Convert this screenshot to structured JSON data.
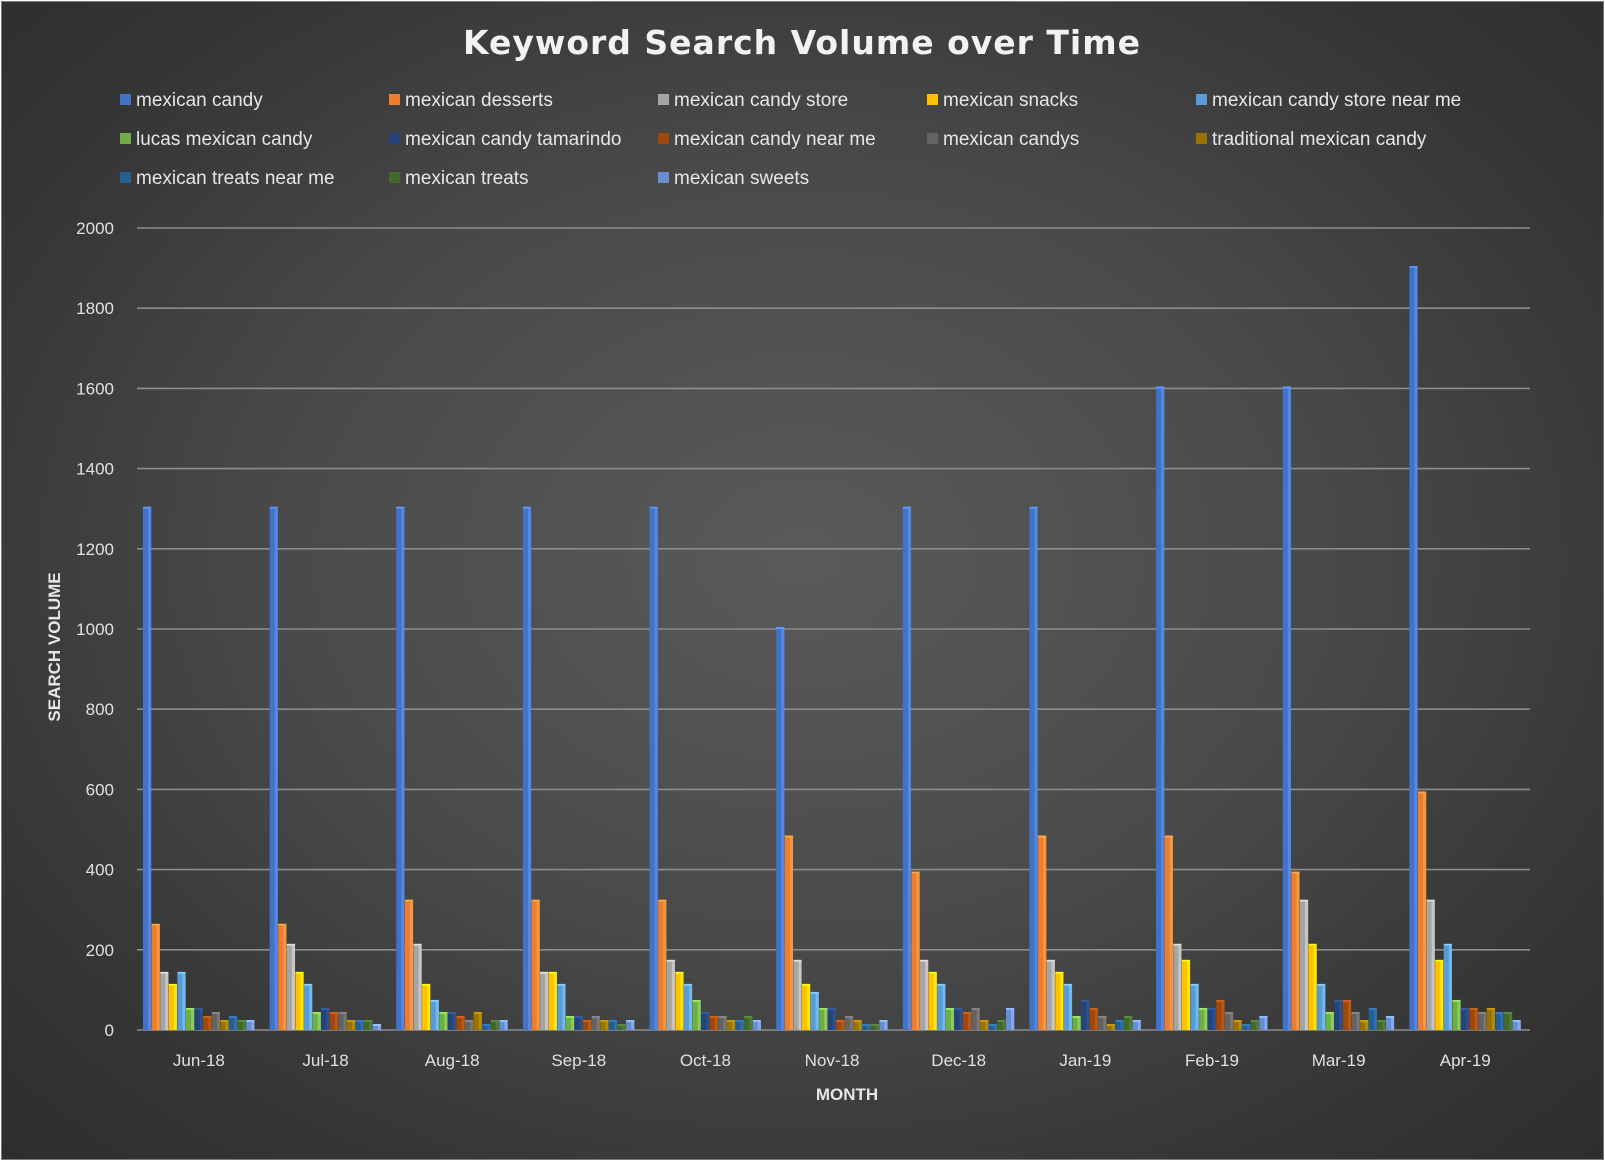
{
  "chart_data": {
    "type": "bar",
    "title": "Keyword Search Volume over Time",
    "xlabel": "MONTH",
    "ylabel": "SEARCH VOLUME",
    "ylim": [
      0,
      2000
    ],
    "yticks": [
      0,
      200,
      400,
      600,
      800,
      1000,
      1200,
      1400,
      1600,
      1800,
      2000
    ],
    "grid": true,
    "legend_position": "top",
    "categories": [
      "Jun-18",
      "Jul-18",
      "Aug-18",
      "Sep-18",
      "Oct-18",
      "Nov-18",
      "Dec-18",
      "Jan-19",
      "Feb-19",
      "Mar-19",
      "Apr-19"
    ],
    "series": [
      {
        "name": "mexican candy",
        "color": "#4472c4",
        "values": [
          1300,
          1300,
          1300,
          1300,
          1300,
          1000,
          1300,
          1300,
          1600,
          1600,
          1900
        ]
      },
      {
        "name": "mexican desserts",
        "color": "#ed7d31",
        "values": [
          260,
          260,
          320,
          320,
          320,
          480,
          390,
          480,
          480,
          390,
          590
        ]
      },
      {
        "name": "mexican candy store",
        "color": "#a5a5a5",
        "values": [
          140,
          210,
          210,
          140,
          170,
          170,
          170,
          170,
          210,
          320,
          320
        ]
      },
      {
        "name": "mexican snacks",
        "color": "#ffc000",
        "values": [
          110,
          140,
          110,
          140,
          140,
          110,
          140,
          140,
          170,
          210,
          170
        ]
      },
      {
        "name": "mexican candy store near me",
        "color": "#5b9bd5",
        "values": [
          140,
          110,
          70,
          110,
          110,
          90,
          110,
          110,
          110,
          110,
          210
        ]
      },
      {
        "name": "lucas mexican candy",
        "color": "#70ad47",
        "values": [
          50,
          40,
          40,
          30,
          70,
          50,
          50,
          30,
          50,
          40,
          70
        ]
      },
      {
        "name": "mexican candy tamarindo",
        "color": "#264478",
        "values": [
          50,
          50,
          40,
          30,
          40,
          50,
          50,
          70,
          50,
          70,
          50
        ]
      },
      {
        "name": "mexican candy near me",
        "color": "#9e480e",
        "values": [
          30,
          40,
          30,
          20,
          30,
          20,
          40,
          50,
          70,
          70,
          50
        ]
      },
      {
        "name": "mexican candys",
        "color": "#636363",
        "values": [
          40,
          40,
          20,
          30,
          30,
          30,
          50,
          30,
          40,
          40,
          40
        ]
      },
      {
        "name": "traditional mexican candy",
        "color": "#997300",
        "values": [
          20,
          20,
          40,
          20,
          20,
          20,
          20,
          10,
          20,
          20,
          50
        ]
      },
      {
        "name": "mexican treats near me",
        "color": "#255e91",
        "values": [
          30,
          20,
          10,
          20,
          20,
          10,
          10,
          20,
          10,
          50,
          40
        ]
      },
      {
        "name": "mexican treats",
        "color": "#43682b",
        "values": [
          20,
          20,
          20,
          10,
          30,
          10,
          20,
          30,
          20,
          20,
          40
        ]
      },
      {
        "name": "mexican sweets",
        "color": "#698ed0",
        "values": [
          20,
          10,
          20,
          20,
          20,
          20,
          50,
          20,
          30,
          30,
          20
        ]
      }
    ]
  }
}
